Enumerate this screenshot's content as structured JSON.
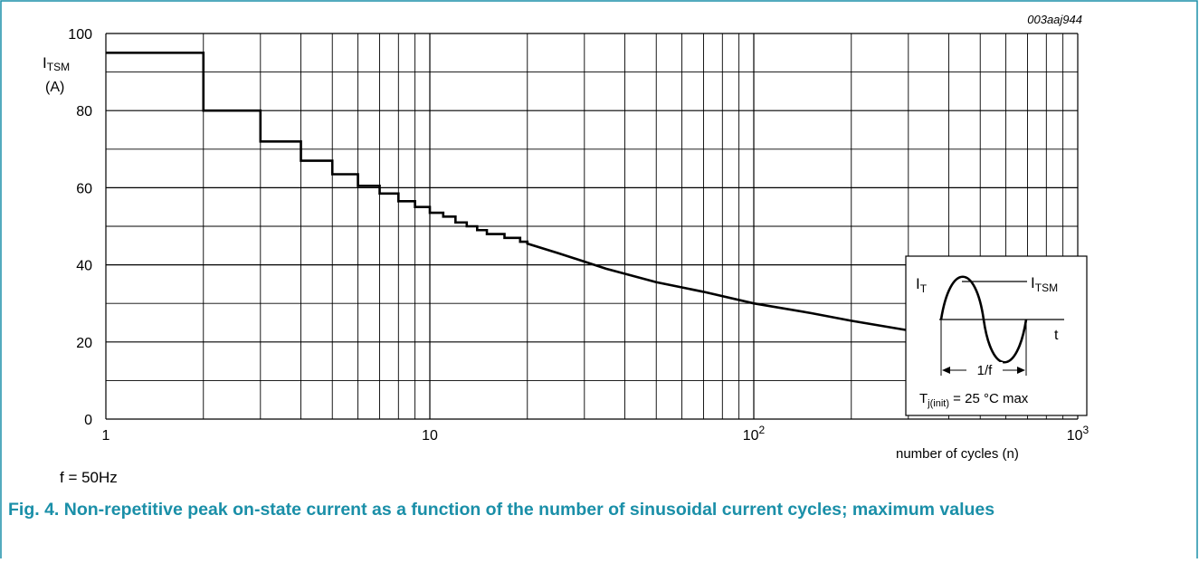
{
  "figure": {
    "id_label": "003aaj944",
    "note": "f = 50Hz",
    "caption": "Fig. 4. Non-repetitive peak on-state current as a function of the number of sinusoidal current cycles; maximum values"
  },
  "chart_data": {
    "type": "line",
    "x_scale": "log",
    "xlim": [
      1,
      1000
    ],
    "ylim": [
      0,
      100
    ],
    "xlabel": "number of cycles (n)",
    "ylabel": {
      "main": "I",
      "sub": "TSM",
      "unit": "(A)"
    },
    "x_ticks": [
      {
        "value": 1,
        "base": "1",
        "exp": ""
      },
      {
        "value": 10,
        "base": "10",
        "exp": ""
      },
      {
        "value": 100,
        "base": "10",
        "exp": "2"
      },
      {
        "value": 1000,
        "base": "10",
        "exp": "3"
      }
    ],
    "y_ticks": [
      0,
      20,
      40,
      60,
      80,
      100
    ],
    "grid": true,
    "series": [
      {
        "step_values": [
          {
            "n": 1,
            "i": 95
          },
          {
            "n": 2,
            "i": 80
          },
          {
            "n": 3,
            "i": 72
          },
          {
            "n": 4,
            "i": 67
          },
          {
            "n": 5,
            "i": 63.5
          },
          {
            "n": 6,
            "i": 60.5
          },
          {
            "n": 7,
            "i": 58.5
          },
          {
            "n": 8,
            "i": 56.5
          },
          {
            "n": 9,
            "i": 55
          },
          {
            "n": 10,
            "i": 53.5
          },
          {
            "n": 11,
            "i": 52.5
          },
          {
            "n": 12,
            "i": 51
          },
          {
            "n": 13,
            "i": 50
          },
          {
            "n": 14,
            "i": 49
          },
          {
            "n": 15,
            "i": 48
          },
          {
            "n": 17,
            "i": 47
          },
          {
            "n": 19,
            "i": 46
          }
        ],
        "curve_points": [
          {
            "n": 20,
            "i": 45.5
          },
          {
            "n": 25,
            "i": 43
          },
          {
            "n": 35,
            "i": 39
          },
          {
            "n": 50,
            "i": 35.5
          },
          {
            "n": 70,
            "i": 33
          },
          {
            "n": 100,
            "i": 30
          },
          {
            "n": 150,
            "i": 27.5
          },
          {
            "n": 200,
            "i": 25.5
          },
          {
            "n": 300,
            "i": 23
          }
        ]
      }
    ],
    "inset": {
      "y_label": {
        "main": "I",
        "sub": "T"
      },
      "peak_label": {
        "main": "I",
        "sub": "TSM"
      },
      "t_label": "t",
      "period_label": "1/f",
      "condition": {
        "main": "T",
        "sub": "j(init)",
        "rest": " = 25 °C max"
      }
    }
  }
}
